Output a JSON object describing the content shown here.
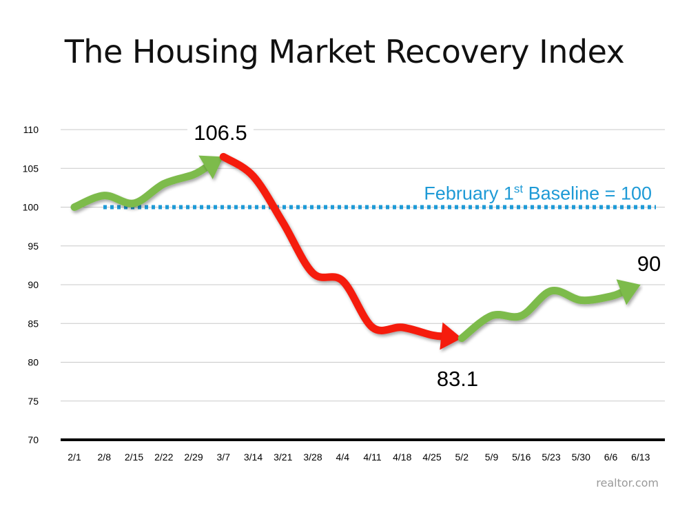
{
  "title": "The Housing Market Recovery Index",
  "credit": "realtor.com",
  "baseline": {
    "label_prefix": "February 1",
    "label_sup": "st",
    "label_suffix": " Baseline = 100",
    "value": 100,
    "color": "#1e9ad6"
  },
  "colors": {
    "up": "#7dbb4c",
    "down": "#f51a0a",
    "grid": "#c8c8c8",
    "axis": "#000000"
  },
  "annotations": {
    "peak": "106.5",
    "low": "83.1",
    "end": "90"
  },
  "chart_data": {
    "type": "line",
    "title": "The Housing Market Recovery Index",
    "categories": [
      "2/1",
      "2/8",
      "2/15",
      "2/22",
      "2/29",
      "3/7",
      "3/14",
      "3/21",
      "3/28",
      "4/4",
      "4/11",
      "4/18",
      "4/25",
      "5/2",
      "5/9",
      "5/16",
      "5/23",
      "5/30",
      "6/6",
      "6/13"
    ],
    "values": [
      100,
      101.5,
      100.5,
      103,
      104.2,
      106.5,
      104,
      98,
      91.5,
      90.5,
      84.5,
      84.5,
      83.5,
      83.1,
      86,
      86,
      89.2,
      88,
      88.5,
      90
    ],
    "ylim": [
      70,
      110
    ],
    "yticks": [
      110,
      105,
      100,
      95,
      90,
      85,
      80,
      75,
      70
    ],
    "grid": true,
    "segments": [
      {
        "from": 0,
        "to": 5,
        "trend": "up"
      },
      {
        "from": 5,
        "to": 13,
        "trend": "down"
      },
      {
        "from": 13,
        "to": 19,
        "trend": "up"
      }
    ]
  }
}
